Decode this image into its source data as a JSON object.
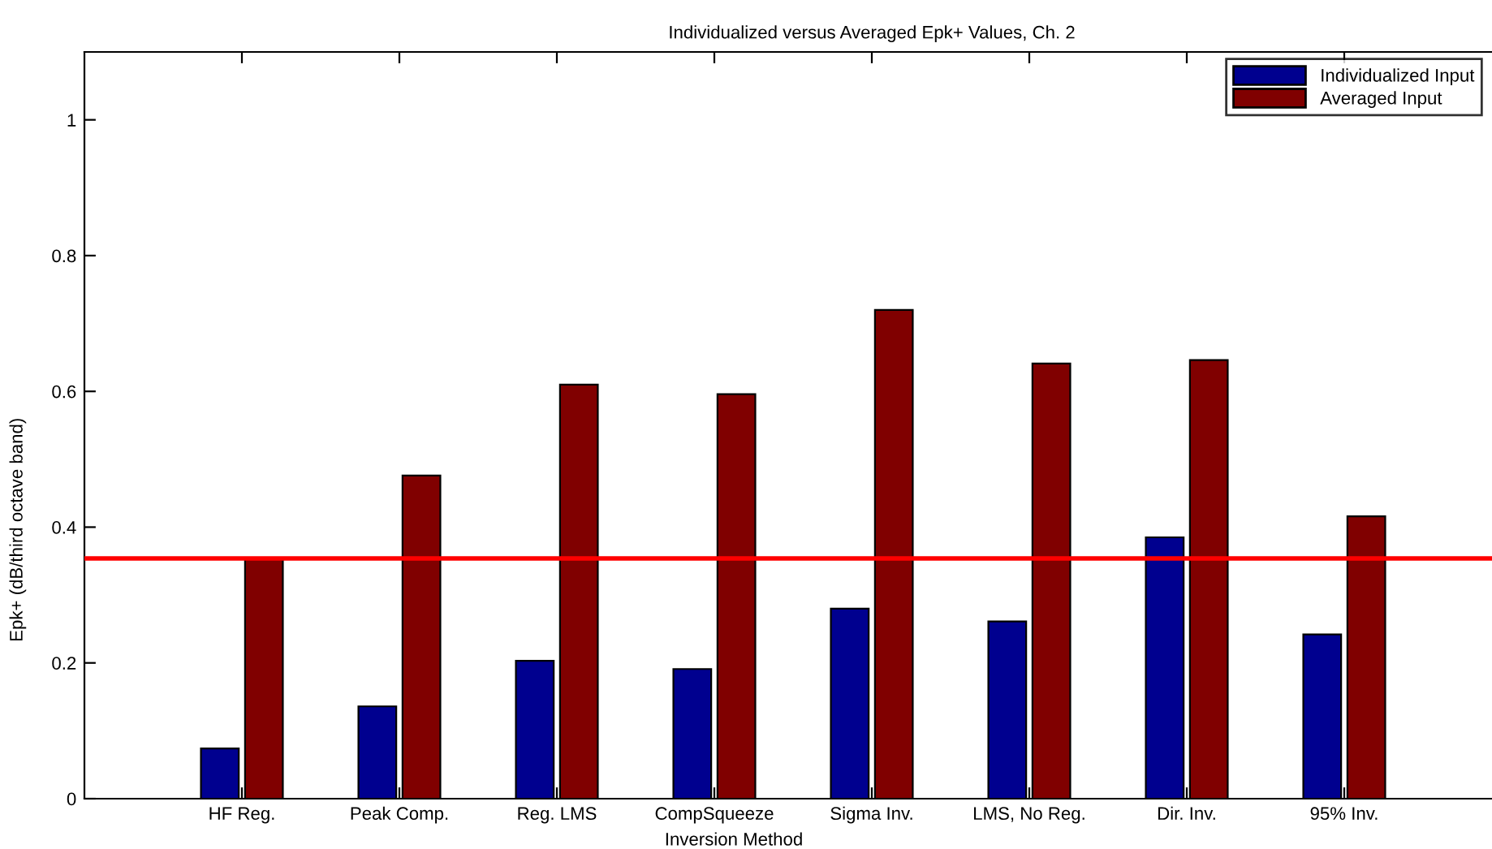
{
  "chart_data": {
    "type": "bar",
    "title": "Individualized versus Averaged Epk+ Values, Ch. 2",
    "xlabel": "Inversion Method",
    "ylabel": "Epk+ (dB/third octave band)",
    "categories": [
      "HF Reg.",
      "Peak Comp.",
      "Reg. LMS",
      "CompSqueeze",
      "Sigma Inv.",
      "LMS, No Reg.",
      "Dir. Inv.",
      "95% Inv."
    ],
    "series": [
      {
        "name": "Individualized Input",
        "color": "#00008f",
        "values": [
          0.074,
          0.136,
          0.203,
          0.191,
          0.28,
          0.261,
          0.385,
          0.242
        ]
      },
      {
        "name": "Averaged Input",
        "color": "#800000",
        "values": [
          0.354,
          0.476,
          0.61,
          0.596,
          0.72,
          0.641,
          0.646,
          0.416
        ]
      }
    ],
    "ylim": [
      0,
      1.1
    ],
    "yticks": [
      0,
      0.2,
      0.4,
      0.6,
      0.8,
      1
    ],
    "ref_lines": [
      {
        "axis": "y",
        "value": 0.354,
        "color": "#ff0000"
      }
    ],
    "grid": false,
    "legend": "top right"
  }
}
